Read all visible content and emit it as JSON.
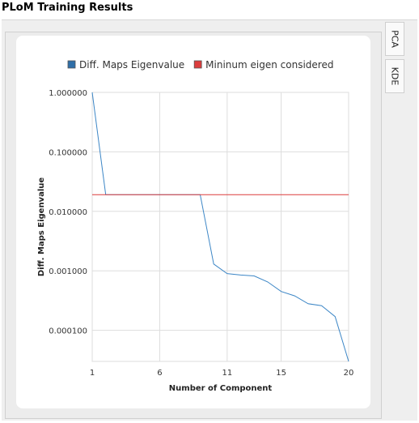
{
  "page": {
    "title": "PLoM Training Results"
  },
  "tabs": [
    {
      "label": "PCA"
    },
    {
      "label": "KDE"
    }
  ],
  "colors": {
    "series": "#3c86c6",
    "threshold": "#dc3c3c",
    "grid": "#dddddd",
    "legend_swatch_series": "#2f6fa8"
  },
  "chart_data": {
    "type": "line",
    "xlabel": "Number of Component",
    "ylabel": "Diff. Maps Eigenvalue",
    "y_scale": "log",
    "xlim": [
      1,
      20
    ],
    "ylim": [
      3e-05,
      1.0
    ],
    "x_ticks": [
      "1",
      "6",
      "11",
      "15",
      "20"
    ],
    "x_tick_values": [
      1,
      6,
      11,
      15,
      20
    ],
    "y_ticks": [
      "1.000000",
      "0.100000",
      "0.010000",
      "0.001000",
      "0.000100"
    ],
    "y_tick_values": [
      1.0,
      0.1,
      0.01,
      0.001,
      0.0001
    ],
    "grid": true,
    "legend_position": "top",
    "series": [
      {
        "name": "Diff. Maps Eigenvalue",
        "x": [
          1,
          2,
          3,
          4,
          5,
          6,
          7,
          8,
          9,
          10,
          11,
          12,
          13,
          14,
          15,
          16,
          17,
          18,
          19,
          20
        ],
        "y": [
          1.0,
          0.019,
          0.019,
          0.019,
          0.019,
          0.019,
          0.019,
          0.019,
          0.019,
          0.0013,
          0.0009,
          0.00085,
          0.00082,
          0.00065,
          0.00045,
          0.00038,
          0.00028,
          0.00026,
          0.00017,
          3e-05
        ]
      },
      {
        "name": "Mininum eigen considered",
        "x": [
          1,
          20
        ],
        "y": [
          0.019,
          0.019
        ]
      }
    ]
  }
}
